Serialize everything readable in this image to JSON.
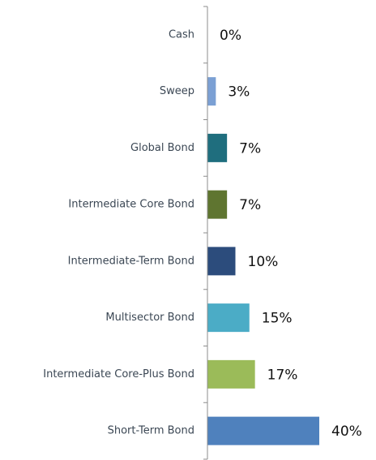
{
  "chart_data": {
    "type": "bar",
    "orientation": "horizontal",
    "categories": [
      "Cash",
      "Sweep",
      "Global Bond",
      "Intermediate Core Bond",
      "Intermediate-Term Bond",
      "Multisector Bond",
      "Intermediate Core-Plus Bond",
      "Short-Term Bond"
    ],
    "values": [
      0,
      3,
      7,
      7,
      10,
      15,
      17,
      40
    ],
    "value_labels": [
      "0%",
      "3%",
      "7%",
      "7%",
      "10%",
      "15%",
      "17%",
      "40%"
    ],
    "colors": [
      "#4f81bd",
      "#7ba0d4",
      "#1f6e7e",
      "#5f7530",
      "#2c4c7c",
      "#4bacc6",
      "#9bbb59",
      "#4f81bd"
    ],
    "xlim": [
      0,
      40
    ],
    "grid": false,
    "legend": "none"
  }
}
